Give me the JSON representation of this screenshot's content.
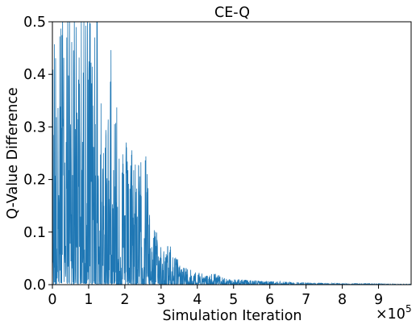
{
  "chart_data": {
    "type": "line",
    "title": "CE-Q",
    "xlabel": "Simulation Iteration",
    "ylabel": "Q-Value Difference",
    "x_offset_text": "×10",
    "x_offset_exponent": "5",
    "xlim": [
      0,
      9.9
    ],
    "ylim": [
      0,
      0.5
    ],
    "xticks": [
      "0",
      "1",
      "2",
      "3",
      "4",
      "5",
      "6",
      "7",
      "8",
      "9"
    ],
    "yticks": [
      "0.0",
      "0.1",
      "0.2",
      "0.3",
      "0.4",
      "0.5"
    ],
    "grid": false,
    "legend": "none",
    "series": [
      {
        "color": "#1f77b4",
        "envelope": {
          "x": [
            0.0,
            0.05,
            0.1,
            0.2,
            0.3,
            0.4,
            0.5,
            0.6,
            0.7,
            0.8,
            0.9,
            1.0,
            1.1,
            1.2,
            1.3,
            1.4,
            1.5,
            1.6,
            1.65,
            1.7,
            1.8,
            1.9,
            2.0,
            2.1,
            2.2,
            2.3,
            2.4,
            2.5,
            2.6,
            2.7,
            2.8,
            2.9,
            3.0,
            3.1,
            3.2,
            3.3,
            3.4,
            3.5,
            3.6,
            3.7,
            3.8,
            3.9,
            4.0,
            4.2,
            4.5,
            4.8,
            5.0,
            5.5,
            6.0,
            6.5,
            7.0,
            7.5,
            8.0,
            8.5,
            9.0,
            9.5,
            9.9
          ],
          "peak": [
            0.33,
            0.5,
            0.5,
            0.5,
            0.5,
            0.5,
            0.5,
            0.5,
            0.5,
            0.5,
            0.5,
            0.5,
            0.5,
            0.5,
            0.5,
            0.24,
            0.3,
            0.45,
            0.46,
            0.3,
            0.36,
            0.22,
            0.27,
            0.22,
            0.25,
            0.23,
            0.22,
            0.22,
            0.24,
            0.11,
            0.1,
            0.09,
            0.09,
            0.05,
            0.08,
            0.06,
            0.05,
            0.04,
            0.035,
            0.03,
            0.03,
            0.02,
            0.03,
            0.015,
            0.02,
            0.01,
            0.01,
            0.008,
            0.006,
            0.005,
            0.004,
            0.003,
            0.002,
            0.002,
            0.0015,
            0.001,
            0.001
          ],
          "floor": [
            0.005,
            0.005,
            0.005,
            0.005,
            0.005,
            0.005,
            0.005,
            0.005,
            0.004,
            0.004,
            0.004,
            0.004,
            0.004,
            0.003,
            0.003,
            0.003,
            0.003,
            0.003,
            0.003,
            0.003,
            0.002,
            0.002,
            0.002,
            0.002,
            0.002,
            0.002,
            0.002,
            0.002,
            0.001,
            0.001,
            0.001,
            0.001,
            0.001,
            0.001,
            0.001,
            0.001,
            0.001,
            0.0005,
            0.0005,
            0.0005,
            0.0005,
            0.0005,
            0.0005,
            0.0005,
            0.0005,
            0.0002,
            0.0002,
            0.0002,
            0.0001,
            0.0001,
            0.0001,
            0.0001,
            0.0001,
            0.0001,
            0.0001,
            0.0001,
            0.0001
          ]
        }
      }
    ]
  }
}
